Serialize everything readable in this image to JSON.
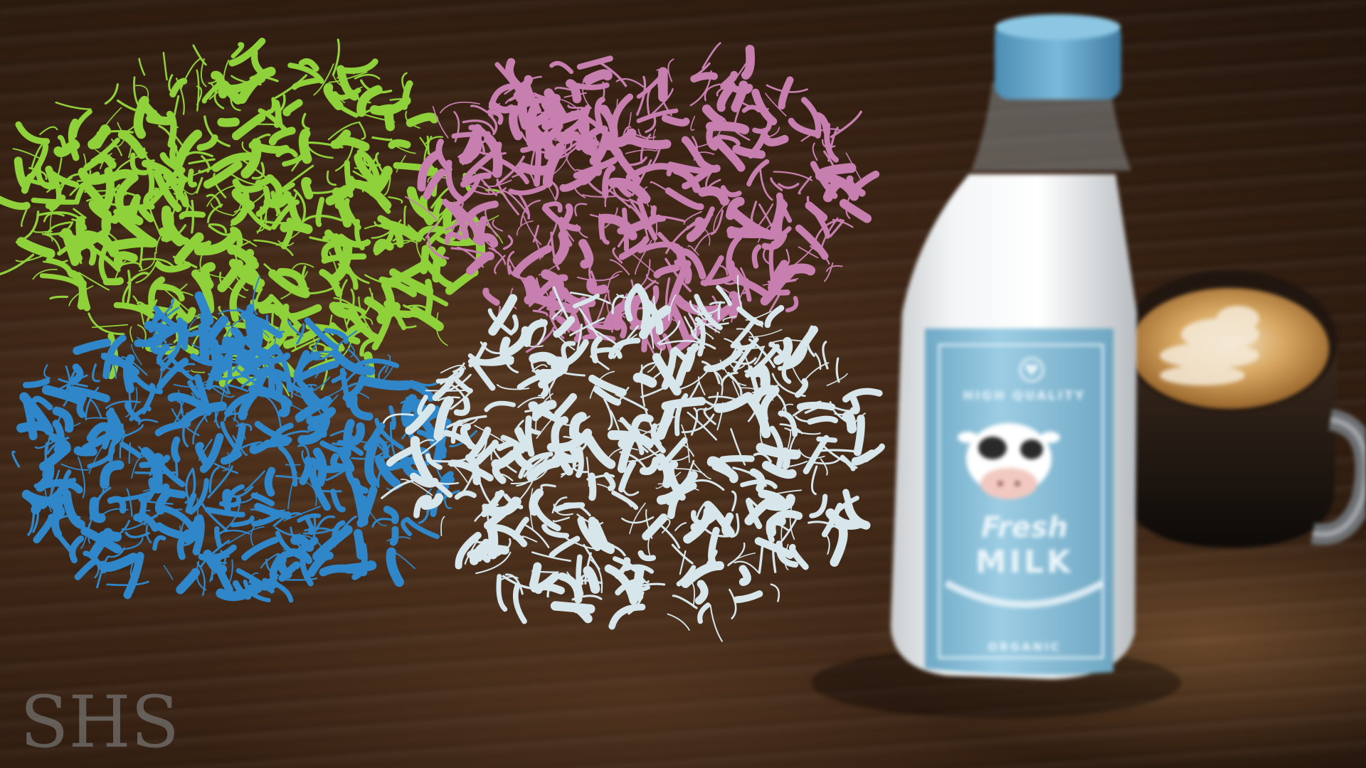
{
  "scene": {
    "description_free": true,
    "colors": {
      "table": "#4a2e1b",
      "protein_green": "#8fd13a",
      "protein_pink": "#c77fb0",
      "protein_blue": "#2f86c8",
      "protein_white": "#d6e6ea",
      "bottle_cap": "#6aa9cc",
      "label_blue": "#8ec3dc",
      "milk": "#eef2f4",
      "coffee_crema": "#b8863e"
    },
    "icons": [
      "heart-icon",
      "cow-icon"
    ]
  },
  "milk_label": {
    "top_line": "HIGH QUALITY",
    "script_word": "Fresh",
    "main_word": "MILK",
    "bottom_line": "ORGANIC"
  },
  "watermark": {
    "text": "SHS"
  }
}
